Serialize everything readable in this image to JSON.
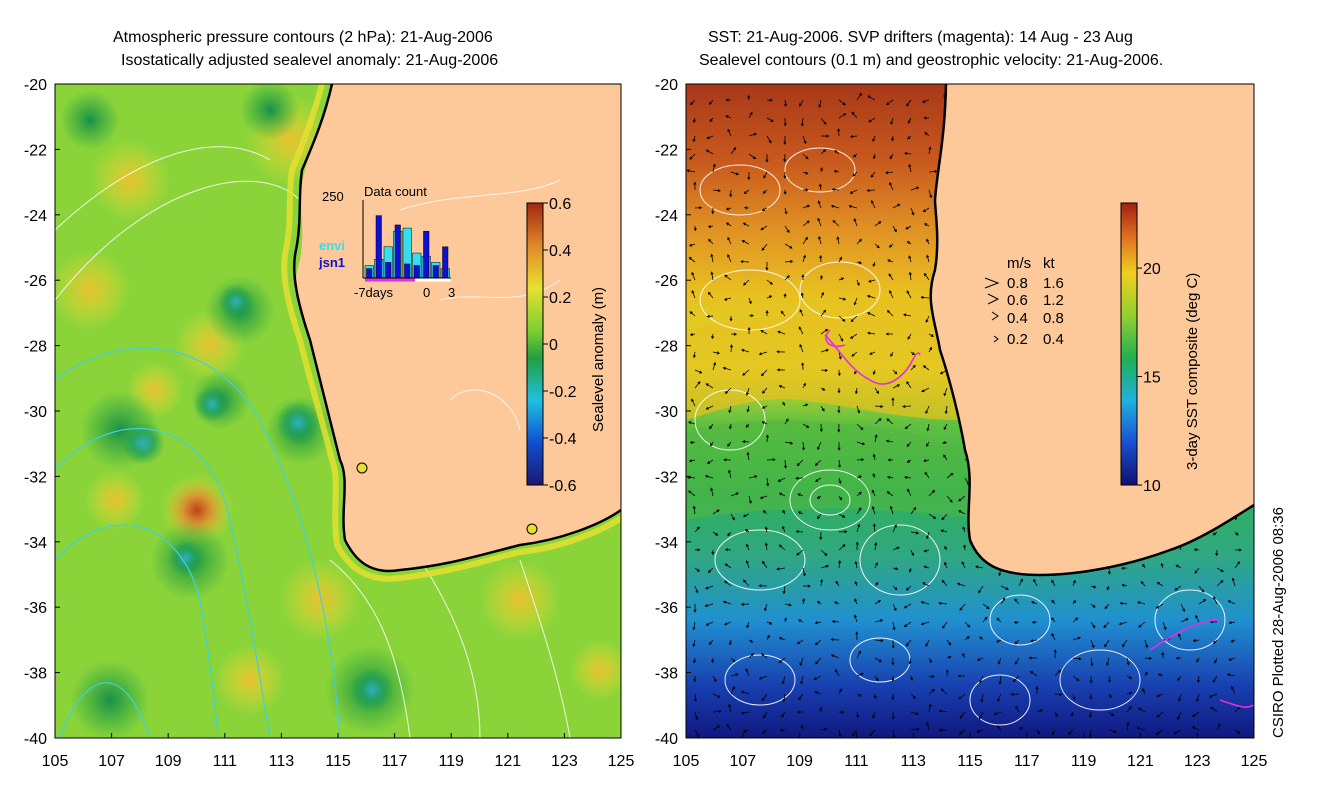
{
  "left_panel": {
    "title_line1": "Atmospheric pressure contours (2 hPa): 21-Aug-2006",
    "title_line2": "Isostatically adjusted sealevel anomaly: 21-Aug-2006",
    "colorbar": {
      "label": "Sealevel anomaly (m)",
      "ticks": [
        "0.6",
        "0.4",
        "0.2",
        "0",
        "-0.2",
        "-0.4",
        "-0.6"
      ],
      "range": [
        -0.6,
        0.6
      ]
    },
    "inset": {
      "title": "Data count",
      "ymax_label": "250",
      "legend": [
        {
          "label": "envi",
          "color": "#33e0f0"
        },
        {
          "label": "jsn1",
          "color": "#1010d0"
        }
      ],
      "x_labels": [
        "-7days",
        "0",
        "3"
      ],
      "bars": [
        {
          "day": -7,
          "envi": 40,
          "jsn1": 30
        },
        {
          "day": -6,
          "envi": 60,
          "jsn1": 200
        },
        {
          "day": -5,
          "envi": 100,
          "jsn1": 50
        },
        {
          "day": -4,
          "envi": 150,
          "jsn1": 170
        },
        {
          "day": -3,
          "envi": 160,
          "jsn1": 45
        },
        {
          "day": -2,
          "envi": 80,
          "jsn1": 40
        },
        {
          "day": -1,
          "envi": 70,
          "jsn1": 150
        },
        {
          "day": 0,
          "envi": 50,
          "jsn1": 40
        },
        {
          "day": 1,
          "envi": 30,
          "jsn1": 100
        }
      ]
    }
  },
  "right_panel": {
    "title_line1": "SST: 21-Aug-2006. SVP drifters (magenta): 14 Aug - 23 Aug",
    "title_line2": "Sealevel contours (0.1 m) and geostrophic velocity: 21-Aug-2006.",
    "colorbar": {
      "label": "3-day SST composite (deg C)",
      "ticks": [
        "20",
        "15",
        "10"
      ],
      "range": [
        10,
        23
      ]
    },
    "velocity_legend": {
      "header_ms": "m/s",
      "header_kt": "kt",
      "rows": [
        {
          "ms": "0.8",
          "kt": "1.6"
        },
        {
          "ms": "0.6",
          "kt": "1.2"
        },
        {
          "ms": "0.4",
          "kt": "0.8"
        },
        {
          "ms": "0.2",
          "kt": "0.4"
        }
      ]
    }
  },
  "axes": {
    "lat_labels": [
      "-20",
      "-22",
      "-24",
      "-26",
      "-28",
      "-30",
      "-32",
      "-34",
      "-36",
      "-38",
      "-40"
    ],
    "lon_labels": [
      "105",
      "107",
      "109",
      "111",
      "113",
      "115",
      "117",
      "119",
      "121",
      "123",
      "125"
    ],
    "lat_range": [
      -40,
      -20
    ],
    "lon_range": [
      105,
      125
    ]
  },
  "credit": "CSIRO Plotted 28-Aug-2006 08:36",
  "colors": {
    "land": "#fdc99a",
    "coast": "#000000",
    "sla_positive": "#d87a2a",
    "sla_neutral": "#8ad43a",
    "sla_negative": "#1f9e4a",
    "sst_warm": "#b8401c",
    "sst_mid": "#e8d020",
    "sst_cool": "#30b060",
    "sst_cold": "#1030a0",
    "drifter": "#e030e0",
    "pressure_contour": "#40d0e0"
  }
}
